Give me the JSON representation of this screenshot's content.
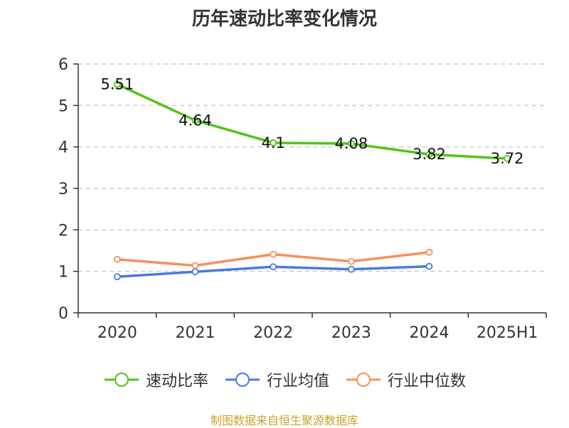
{
  "chart_data": {
    "type": "line",
    "title": "历年速动比率变化情况",
    "categories": [
      "2020",
      "2021",
      "2022",
      "2023",
      "2024",
      "2025H1"
    ],
    "ylim": [
      0,
      6
    ],
    "yticks": [
      0,
      1,
      2,
      3,
      4,
      5,
      6
    ],
    "grid": true,
    "legend_position": "bottom",
    "series": [
      {
        "name": "速动比率",
        "color": "#52c41a",
        "show_labels": true,
        "values": [
          5.51,
          4.64,
          4.1,
          4.08,
          3.82,
          3.72
        ],
        "labels": [
          "5.51",
          "4.64",
          "4.1",
          "4.08",
          "3.82",
          "3.72"
        ]
      },
      {
        "name": "行业均值",
        "color": "#4a7bdc",
        "show_labels": false,
        "values": [
          0.87,
          0.99,
          1.11,
          1.05,
          1.12,
          null
        ]
      },
      {
        "name": "行业中位数",
        "color": "#f7905a",
        "show_labels": false,
        "values": [
          1.29,
          1.14,
          1.41,
          1.24,
          1.46,
          null
        ]
      }
    ],
    "source": "制图数据来自恒生聚源数据库"
  }
}
